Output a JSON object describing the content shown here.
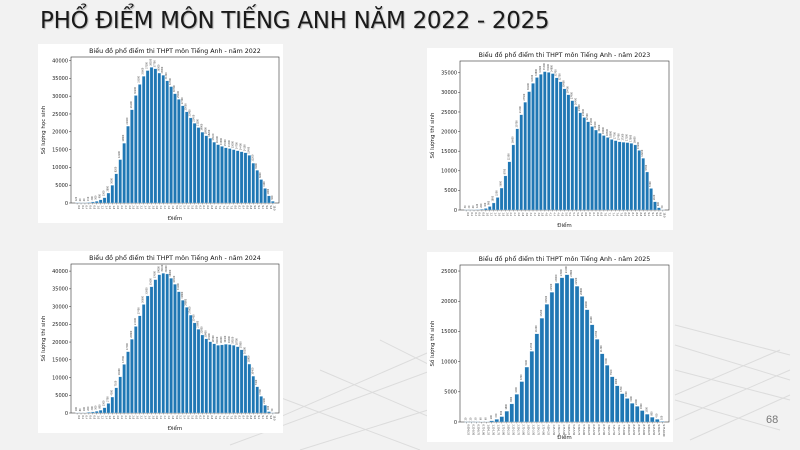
{
  "slide": {
    "title": "PHỔ ĐIỂM MÔN TIẾNG ANH NĂM 2022 - 2025",
    "page_number": "68"
  },
  "chart_data": [
    {
      "type": "bar",
      "title": "Biểu đồ phổ điểm thi THPT môn Tiếng Anh - năm 2022",
      "xlabel": "Điểm",
      "ylabel": "Số lượng học sinh",
      "ylim": [
        0,
        41000
      ],
      "yticks": [
        0,
        5000,
        10000,
        15000,
        20000,
        25000,
        30000,
        35000,
        40000
      ],
      "grid": false,
      "bar_color": "#1f77b4",
      "categories": [
        "0.0",
        "0.2",
        "0.4",
        "0.6",
        "0.8",
        "1.0",
        "1.2",
        "1.4",
        "1.6",
        "1.8",
        "2.0",
        "2.2",
        "2.4",
        "2.6",
        "2.8",
        "3.0",
        "3.2",
        "3.4",
        "3.6",
        "3.8",
        "4.0",
        "4.2",
        "4.4",
        "4.6",
        "4.8",
        "5.0",
        "5.2",
        "5.4",
        "5.6",
        "5.8",
        "6.0",
        "6.2",
        "6.4",
        "6.6",
        "6.8",
        "7.0",
        "7.2",
        "7.4",
        "7.6",
        "7.8",
        "8.0",
        "8.2",
        "8.4",
        "8.6",
        "8.8",
        "9.0",
        "9.2",
        "9.4",
        "9.6",
        "9.8",
        "10.0"
      ],
      "values": [
        120,
        60,
        60,
        150,
        300,
        500,
        900,
        1500,
        2800,
        5000,
        8200,
        12200,
        16800,
        21600,
        26200,
        30200,
        33300,
        35600,
        37200,
        38100,
        37700,
        36500,
        35900,
        34300,
        32700,
        30700,
        29100,
        27300,
        25600,
        23900,
        22400,
        21200,
        19900,
        18900,
        18200,
        17100,
        16400,
        15900,
        15500,
        15300,
        15000,
        14700,
        14400,
        14100,
        13400,
        11200,
        9200,
        6600,
        4100,
        2000,
        500
      ]
    },
    {
      "type": "bar",
      "title": "Biểu đồ phổ điểm thi THPT môn Tiếng Anh - năm 2023",
      "xlabel": "Điểm",
      "ylabel": "Số lượng thí sinh",
      "ylim": [
        0,
        38000
      ],
      "yticks": [
        0,
        5000,
        10000,
        15000,
        20000,
        25000,
        30000,
        35000
      ],
      "grid": false,
      "bar_color": "#1f77b4",
      "categories": [
        "0.0",
        "0.2",
        "0.4",
        "0.6",
        "0.8",
        "1.0",
        "1.2",
        "1.4",
        "1.6",
        "1.8",
        "2.0",
        "2.2",
        "2.4",
        "2.6",
        "2.8",
        "3.0",
        "3.2",
        "3.4",
        "3.6",
        "3.8",
        "4.0",
        "4.2",
        "4.4",
        "4.6",
        "4.8",
        "5.0",
        "5.2",
        "5.4",
        "5.6",
        "5.8",
        "6.0",
        "6.2",
        "6.4",
        "6.6",
        "6.8",
        "7.0",
        "7.2",
        "7.4",
        "7.6",
        "7.8",
        "8.0",
        "8.2",
        "8.4",
        "8.6",
        "8.8",
        "9.0",
        "9.2",
        "9.4",
        "9.6",
        "9.8",
        "10.0"
      ],
      "values": [
        50,
        40,
        60,
        120,
        200,
        400,
        900,
        1800,
        3200,
        5600,
        8700,
        12300,
        16600,
        20700,
        24300,
        27500,
        30200,
        32300,
        33800,
        34600,
        35300,
        35100,
        34800,
        33700,
        32700,
        30900,
        29400,
        27900,
        26400,
        24800,
        23600,
        22500,
        21300,
        20400,
        19600,
        19000,
        18500,
        18000,
        17700,
        17400,
        17300,
        17200,
        17000,
        16600,
        15200,
        13200,
        9700,
        5500,
        2100,
        600,
        50
      ]
    },
    {
      "type": "bar",
      "title": "Biểu đồ phổ điểm thi THPT môn Tiếng Anh - năm 2024",
      "xlabel": "Điểm",
      "ylabel": "Số lượng thí sinh",
      "ylim": [
        0,
        42000
      ],
      "yticks": [
        0,
        5000,
        10000,
        15000,
        20000,
        25000,
        30000,
        35000,
        40000
      ],
      "grid": false,
      "bar_color": "#1f77b4",
      "categories": [
        "0.0",
        "0.2",
        "0.4",
        "0.6",
        "0.8",
        "1.0",
        "1.2",
        "1.4",
        "1.6",
        "1.8",
        "2.0",
        "2.2",
        "2.4",
        "2.6",
        "2.8",
        "3.0",
        "3.2",
        "3.4",
        "3.6",
        "3.8",
        "4.0",
        "4.2",
        "4.4",
        "4.6",
        "4.8",
        "5.0",
        "5.2",
        "5.4",
        "5.6",
        "5.8",
        "6.0",
        "6.2",
        "6.4",
        "6.6",
        "6.8",
        "7.0",
        "7.2",
        "7.4",
        "7.6",
        "7.8",
        "8.0",
        "8.2",
        "8.4",
        "8.6",
        "8.8",
        "9.0",
        "9.2",
        "9.4",
        "9.6",
        "9.8",
        "10.0"
      ],
      "values": [
        100,
        80,
        100,
        200,
        300,
        500,
        800,
        1500,
        2700,
        4500,
        7100,
        10200,
        13700,
        17300,
        20800,
        24400,
        27400,
        30600,
        33000,
        35600,
        37600,
        39000,
        39400,
        39200,
        38000,
        36300,
        34200,
        31800,
        29800,
        27600,
        25400,
        23600,
        22000,
        20900,
        20100,
        19500,
        19100,
        19200,
        19400,
        19300,
        19100,
        18700,
        17800,
        16200,
        13800,
        10400,
        7400,
        4700,
        2200,
        400,
        50
      ]
    },
    {
      "type": "bar",
      "title": "Biểu đồ phổ điểm thi THPT môn Tiếng Anh - năm 2025",
      "xlabel": "Điểm",
      "ylabel": "Số lượng thí sinh",
      "ylim": [
        0,
        26000
      ],
      "yticks": [
        0,
        5000,
        10000,
        15000,
        20000,
        25000
      ],
      "grid": false,
      "bar_color": "#1f77b4",
      "categories": [
        "0.00-0.25",
        "0.25-0.50",
        "0.50-0.75",
        "0.75-1.00",
        "1.00-1.25",
        "1.25-1.50",
        "1.50-1.75",
        "1.75-2.00",
        "2.00-2.25",
        "2.25-2.50",
        "2.50-2.75",
        "2.75-3.00",
        "3.00-3.25",
        "3.25-3.50",
        "3.50-3.75",
        "3.75-4.00",
        "4.00-4.25",
        "4.25-4.50",
        "4.50-4.75",
        "4.75-5.00",
        "5.00-5.25",
        "5.25-5.50",
        "5.50-5.75",
        "5.75-6.00",
        "6.00-6.25",
        "6.25-6.50",
        "6.50-6.75",
        "6.75-7.00",
        "7.00-7.25",
        "7.25-7.50",
        "7.50-7.75",
        "7.75-8.00",
        "8.00-8.25",
        "8.25-8.50",
        "8.50-8.75",
        "8.75-9.00",
        "9.00-9.25",
        "9.25-9.50",
        "9.50-9.75",
        "9.75-10.00"
      ],
      "values": [
        20,
        20,
        30,
        60,
        60,
        200,
        450,
        900,
        1800,
        3000,
        4600,
        6700,
        9100,
        11700,
        14600,
        17200,
        19500,
        21500,
        23000,
        23900,
        24400,
        23800,
        22500,
        20800,
        18600,
        16100,
        13700,
        11300,
        9400,
        7500,
        6000,
        4700,
        3900,
        3100,
        2600,
        1900,
        1300,
        800,
        450,
        100
      ]
    }
  ]
}
